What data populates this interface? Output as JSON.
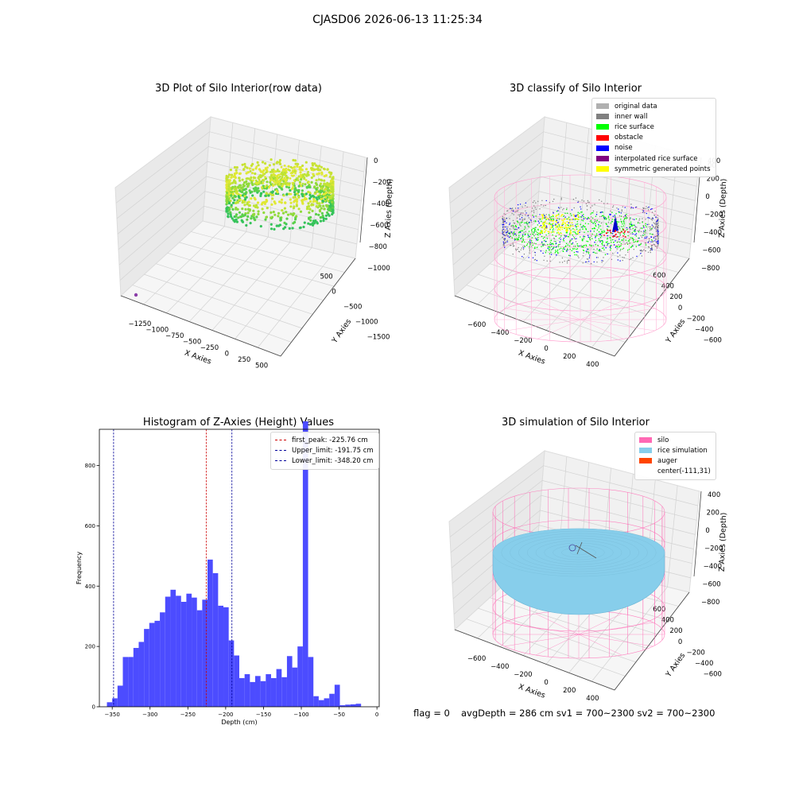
{
  "suptitle": "CJASD06 2026-06-13 11:25:34",
  "footer": {
    "flag": "flag = 0",
    "stats": "avgDepth = 286 cm  sv1 = 700~2300  sv2 = 700~2300"
  },
  "colors": {
    "hist_bar": "#4c4cff",
    "hist_bar_edge": "#3a3af2",
    "first_peak": "#cc0000",
    "limit": "#000099",
    "silo": "#ff69b4",
    "rice_sim": "#87ceeb",
    "auger": "#ff4500",
    "rice_surface": "#00ff00",
    "noise": "#0000ff",
    "obstacle": "#ff0000",
    "symmetric": "#ffff00",
    "inner_wall": "#808080",
    "original": "#b0b0b0",
    "interpolated": "#800080"
  },
  "chart_data": [
    {
      "type": "scatter3d",
      "title": "3D Plot of Silo Interior(row data)",
      "xlabel": "X Axies",
      "ylabel": "Y Axies",
      "zlabel": "Z Axies (Depth)",
      "xticks": [
        "−1250",
        "−1000",
        "−750",
        "−500",
        "−250",
        "0",
        "250",
        "500"
      ],
      "yticks": [
        "500",
        "0",
        "−500",
        "−1000",
        "−1500"
      ],
      "zticks": [
        "0",
        "−200",
        "−400",
        "−600",
        "−800",
        "−1000"
      ],
      "colormap": "viridis-like (green to yellow by height)"
    },
    {
      "type": "scatter3d",
      "title": "3D classify of Silo Interior",
      "xlabel": "X Axies",
      "ylabel": "Y Axies",
      "zlabel": "Z Axies (Depth)",
      "xticks": [
        "−600",
        "−400",
        "−200",
        "0",
        "200",
        "400"
      ],
      "yticks": [
        "600",
        "400",
        "200",
        "0",
        "−200",
        "−400",
        "−600"
      ],
      "zticks": [
        "400",
        "200",
        "0",
        "−200",
        "−400",
        "−600",
        "−800"
      ],
      "zticks_partial": "00",
      "legend_location": "upper right",
      "legend": [
        {
          "label": "original data",
          "color": "#b0b0b0"
        },
        {
          "label": "inner wall",
          "color": "#808080"
        },
        {
          "label": "rice surface",
          "color": "#00ff00"
        },
        {
          "label": "obstacle",
          "color": "#ff0000"
        },
        {
          "label": "noise",
          "color": "#0000ff"
        },
        {
          "label": "interpolated rice surface",
          "color": "#800080"
        },
        {
          "label": "symmetric generated points",
          "color": "#ffff00"
        }
      ]
    },
    {
      "type": "bar",
      "title": "Histogram of Z-Axies (Height) Values",
      "xlabel": "Depth (cm)",
      "ylabel": "Frequency",
      "xlim": [
        -367,
        3
      ],
      "ylim": [
        0,
        920
      ],
      "xticks": [
        -350,
        -300,
        -250,
        -200,
        -150,
        -100,
        -50,
        0
      ],
      "xtick_labels": [
        "−350",
        "−300",
        "−250",
        "−200",
        "−150",
        "−100",
        "−50",
        "0"
      ],
      "yticks": [
        0,
        200,
        400,
        600,
        800
      ],
      "ytick_labels": [
        "0",
        "200",
        "400",
        "600",
        "800"
      ],
      "bin_start": -357,
      "bin_width": 7,
      "values": [
        15,
        28,
        70,
        165,
        165,
        195,
        215,
        258,
        278,
        285,
        313,
        365,
        388,
        368,
        348,
        375,
        362,
        320,
        355,
        488,
        443,
        335,
        330,
        220,
        170,
        95,
        108,
        82,
        102,
        85,
        108,
        95,
        125,
        98,
        168,
        130,
        200,
        955,
        165,
        35,
        22,
        28,
        43,
        73,
        5,
        7,
        8,
        10
      ],
      "vlines": [
        {
          "label": "first_peak: -225.76 cm",
          "x": -225.76,
          "color": "#cc0000"
        },
        {
          "label": "Upper_limit: -191.75 cm",
          "x": -191.75,
          "color": "#000099"
        },
        {
          "label": "Lower_limit: -348.20 cm",
          "x": -348.2,
          "color": "#000099"
        }
      ],
      "legend_location": "upper right",
      "grid": false
    },
    {
      "type": "surface3d",
      "title": "3D simulation of Silo Interior",
      "xlabel": "X Axies",
      "ylabel": "Y Axies",
      "zlabel": "Z Axies (Depth)",
      "xticks": [
        "−600",
        "−400",
        "−200",
        "0",
        "200",
        "400"
      ],
      "yticks": [
        "600",
        "400",
        "200",
        "0",
        "−200",
        "−400",
        "−600"
      ],
      "zticks": [
        "400",
        "200",
        "0",
        "−200",
        "−400",
        "−600",
        "−800"
      ],
      "legend_location": "upper right",
      "legend": [
        {
          "label": "silo",
          "color": "#ff69b4"
        },
        {
          "label": "rice simulation",
          "color": "#87ceeb"
        },
        {
          "label": "auger",
          "color": "#ff4500"
        },
        {
          "label": "center(-111,31)",
          "color": ""
        }
      ]
    }
  ]
}
